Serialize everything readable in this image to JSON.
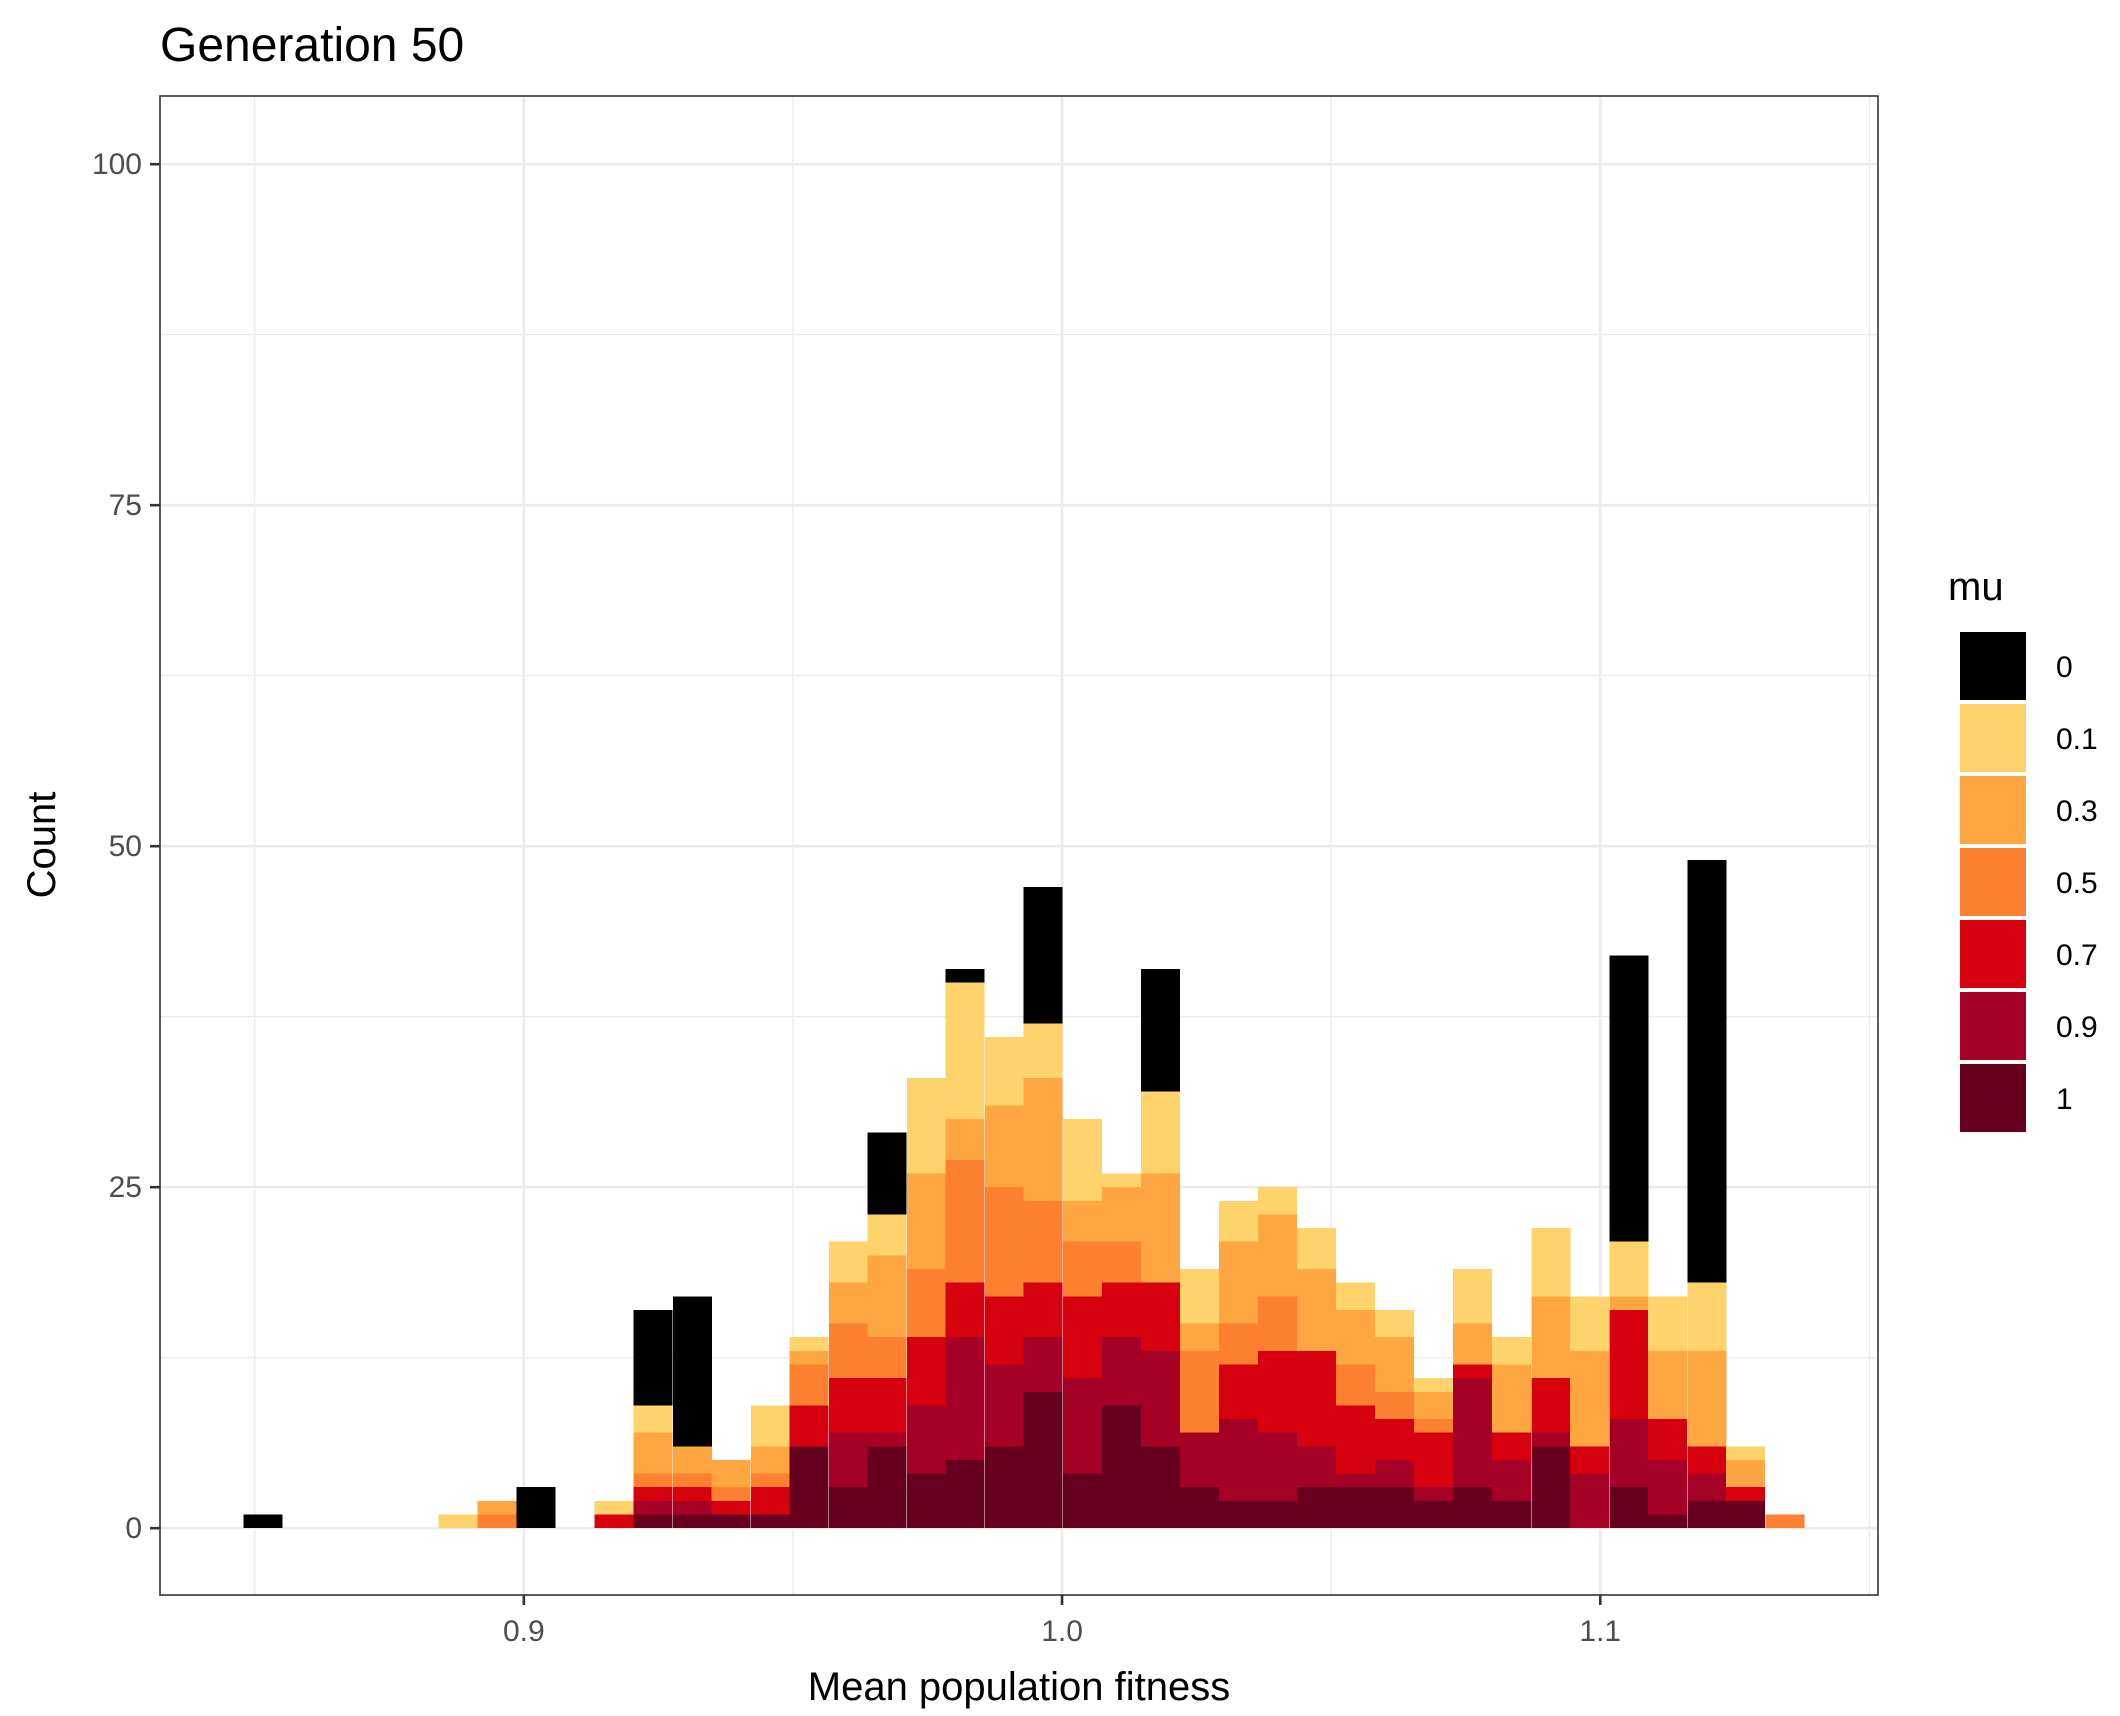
{
  "chart_data": {
    "type": "bar",
    "stacked": true,
    "title": "Generation 50",
    "xlabel": "Mean population fitness",
    "ylabel": "Count",
    "xlim": [
      0.8324,
      1.1516
    ],
    "ylim": [
      -4.9,
      105
    ],
    "x_ticks": [
      0.9,
      1.0,
      1.1
    ],
    "x_tick_labels": [
      "0.9",
      "1.0",
      "1.1"
    ],
    "y_ticks": [
      0,
      25,
      50,
      75,
      100
    ],
    "y_tick_labels": [
      "0",
      "25",
      "50",
      "75",
      "100"
    ],
    "grid": true,
    "legend_title": "mu",
    "legend_position": "right",
    "bin_width": 0.00725,
    "bin_centers": [
      0.8515,
      0.8878,
      0.895,
      0.9023,
      0.9095,
      0.9168,
      0.924,
      0.9313,
      0.9385,
      0.9458,
      0.953,
      0.9603,
      0.9675,
      0.9748,
      0.982,
      0.9893,
      0.9965,
      1.0038,
      1.011,
      1.0183,
      1.0255,
      1.0328,
      1.04,
      1.0473,
      1.0545,
      1.0618,
      1.069,
      1.0763,
      1.0835,
      1.0908,
      1.098,
      1.1053,
      1.1125,
      1.1198,
      1.127,
      1.1343
    ],
    "series": [
      {
        "name": "1",
        "color": "#67001f",
        "values": [
          0,
          0,
          0,
          0,
          0,
          0,
          1,
          1,
          1,
          1,
          6,
          3,
          6,
          4,
          5,
          6,
          10,
          4,
          9,
          6,
          3,
          2,
          2,
          3,
          3,
          3,
          2,
          3,
          2,
          6,
          0,
          3,
          1,
          2,
          2,
          0
        ]
      },
      {
        "name": "0.9",
        "color": "#a50026",
        "values": [
          0,
          0,
          0,
          0,
          0,
          0,
          1,
          1,
          0,
          0,
          0,
          4,
          1,
          5,
          9,
          6,
          4,
          7,
          5,
          7,
          4,
          6,
          5,
          3,
          1,
          2,
          1,
          8,
          3,
          1,
          4,
          5,
          4,
          2,
          0,
          0
        ]
      },
      {
        "name": "0.7",
        "color": "#d7000f",
        "values": [
          0,
          0,
          0,
          0,
          0,
          1,
          1,
          1,
          1,
          2,
          3,
          4,
          4,
          5,
          4,
          5,
          4,
          6,
          4,
          5,
          0,
          4,
          6,
          7,
          5,
          3,
          4,
          1,
          2,
          4,
          2,
          8,
          3,
          2,
          1,
          0
        ]
      },
      {
        "name": "0.5",
        "color": "#fd7f30",
        "values": [
          0,
          0,
          1,
          0,
          0,
          0,
          1,
          1,
          1,
          1,
          3,
          4,
          3,
          5,
          9,
          8,
          6,
          4,
          3,
          0,
          6,
          3,
          4,
          0,
          3,
          2,
          1,
          0,
          0,
          0,
          0,
          0,
          0,
          0,
          0,
          1
        ]
      },
      {
        "name": "0.3",
        "color": "#fea641",
        "values": [
          0,
          0,
          1,
          0,
          0,
          0,
          3,
          2,
          2,
          2,
          1,
          3,
          6,
          7,
          3,
          6,
          9,
          3,
          4,
          8,
          2,
          6,
          6,
          6,
          4,
          4,
          2,
          3,
          5,
          6,
          7,
          1,
          5,
          7,
          2,
          0
        ]
      },
      {
        "name": "0.1",
        "color": "#fed36b",
        "values": [
          0,
          1,
          0,
          0,
          0,
          1,
          2,
          0,
          0,
          3,
          1,
          3,
          3,
          7,
          10,
          5,
          4,
          6,
          1,
          6,
          4,
          3,
          2,
          3,
          2,
          2,
          1,
          4,
          2,
          5,
          4,
          4,
          4,
          5,
          1,
          0
        ]
      },
      {
        "name": "0",
        "color": "#000000",
        "values": [
          1,
          0,
          0,
          3,
          0,
          0,
          7,
          11,
          0,
          0,
          0,
          0,
          6,
          0,
          1,
          0,
          10,
          0,
          0,
          9,
          0,
          0,
          0,
          0,
          0,
          0,
          0,
          0,
          0,
          0,
          0,
          21,
          0,
          31,
          0,
          0
        ]
      }
    ],
    "legend_order": [
      "0",
      "0.1",
      "0.3",
      "0.5",
      "0.7",
      "0.9",
      "1"
    ]
  }
}
